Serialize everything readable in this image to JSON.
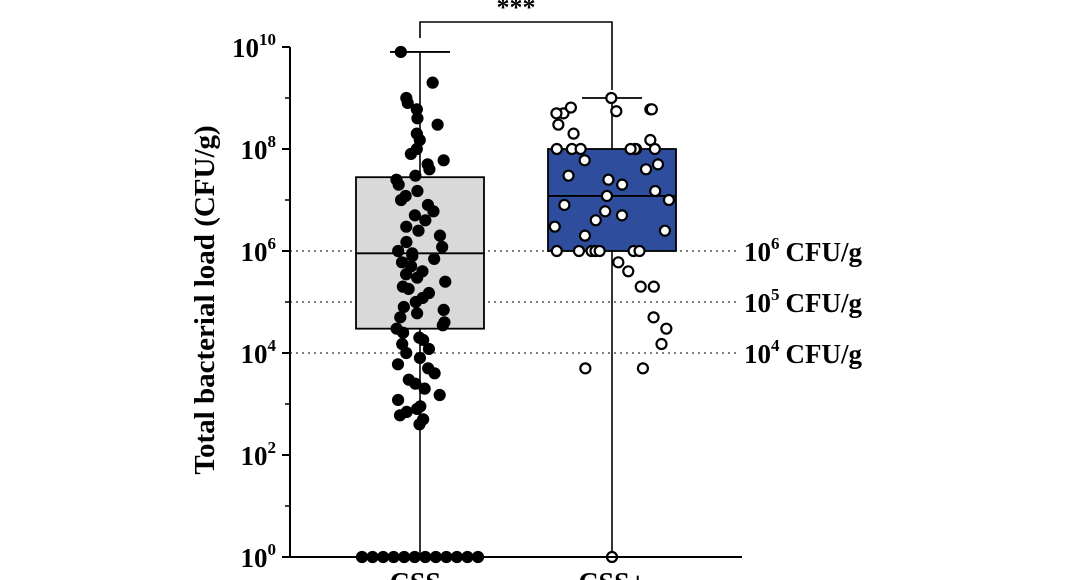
{
  "chart_data": {
    "type": "box",
    "ylabel": "Total bacterial load  (CFU/g)",
    "yscale": "log",
    "ylim": [
      1,
      10000000000
    ],
    "y_ticks": [
      {
        "base": "10",
        "exp": "0",
        "value": 1
      },
      {
        "base": "10",
        "exp": "2",
        "value": 100
      },
      {
        "base": "10",
        "exp": "4",
        "value": 10000
      },
      {
        "base": "10",
        "exp": "6",
        "value": 1000000
      },
      {
        "base": "10",
        "exp": "8",
        "value": 100000000
      },
      {
        "base": "10",
        "exp": "10",
        "value": 10000000000
      }
    ],
    "categories": [
      "CSS-",
      "CSS+"
    ],
    "groups": [
      {
        "name": "CSS-",
        "fill": "#d9d9d9",
        "marker_fill": "#000000",
        "min": 1,
        "q1": 30000,
        "median": 900000,
        "q3": 28000000,
        "max": 8000000000,
        "points": [
          1,
          1,
          1,
          1,
          1,
          1,
          1,
          1,
          1,
          1,
          1,
          1,
          400,
          500,
          600,
          700,
          800,
          900,
          1200,
          1500,
          2000,
          2500,
          3000,
          4000,
          5000,
          6000,
          8000,
          10000,
          12000,
          15000,
          18000,
          20000,
          25000,
          30000,
          35000,
          40000,
          50000,
          60000,
          70000,
          80000,
          100000,
          120000,
          150000,
          180000,
          200000,
          250000,
          300000,
          350000,
          400000,
          500000,
          600000,
          700000,
          800000,
          900000,
          1000000,
          1200000,
          1500000,
          2000000,
          2500000,
          3000000,
          4000000,
          5000000,
          6000000,
          8000000,
          10000000,
          12000000,
          15000000,
          20000000,
          25000000,
          30000000,
          40000000,
          50000000,
          60000000,
          80000000,
          100000000,
          150000000,
          200000000,
          300000000,
          400000000,
          600000000,
          800000000,
          1000000000,
          2000000000,
          8000000000
        ]
      },
      {
        "name": "CSS+",
        "fill": "#2e4d9c",
        "marker_fill": "#ffffff",
        "min": 1,
        "q1": 1000000,
        "median": 12000000,
        "q3": 100000000,
        "max": 1000000000,
        "points": [
          1,
          5000,
          5000,
          50000,
          30000,
          15000,
          200000,
          200000,
          400000,
          600000,
          1000000,
          1000000,
          1000000,
          1000000,
          1000000,
          1000000,
          1000000,
          2000000,
          2500000,
          3000000,
          4000000,
          5000000,
          6000000,
          8000000,
          10000000,
          12000000,
          15000000,
          20000000,
          25000000,
          30000000,
          40000000,
          50000000,
          60000000,
          100000000,
          100000000,
          100000000,
          100000000,
          100000000,
          100000000,
          100000000,
          150000000,
          200000000,
          300000000,
          500000000,
          500000000,
          550000000,
          600000000,
          600000000,
          650000000,
          1000000000
        ]
      }
    ],
    "reference_lines": [
      {
        "value": 1000000,
        "base": "10",
        "exp": "6",
        "unit": "CFU/g"
      },
      {
        "value": 100000,
        "base": "10",
        "exp": "5",
        "unit": "CFU/g"
      },
      {
        "value": 10000,
        "base": "10",
        "exp": "4",
        "unit": "CFU/g"
      }
    ],
    "significance": {
      "label": "***",
      "between": [
        "CSS-",
        "CSS+"
      ]
    },
    "grid": false,
    "legend": "none"
  }
}
